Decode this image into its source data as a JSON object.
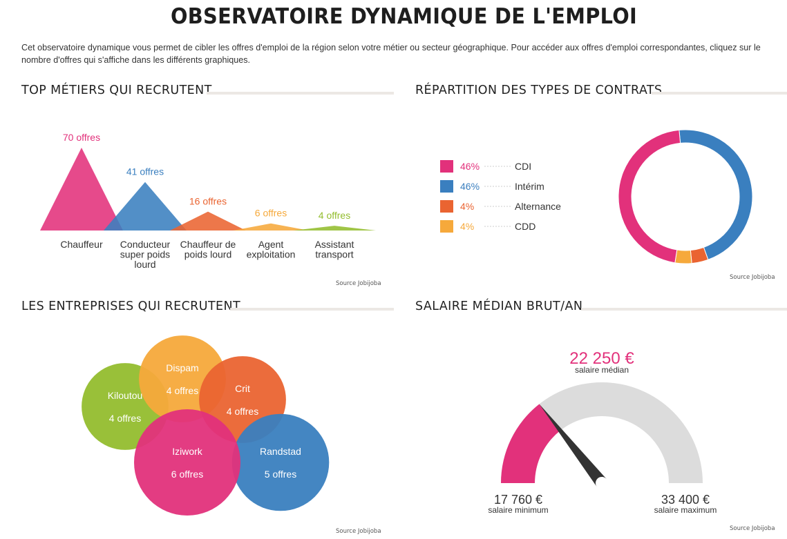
{
  "header": {
    "title": "OBSERVATOIRE DYNAMIQUE DE L'EMPLOI",
    "intro": "Cet observatoire dynamique vous permet de cibler les offres d'emploi de la région selon votre métier ou secteur géographique. Pour accéder aux offres d'emploi correspondantes, cliquez sur le nombre d'offres qui s'affiche dans les différents graphiques."
  },
  "sections": {
    "metiers": "TOP MÉTIERS QUI RECRUTENT",
    "contrats": "RÉPARTITION DES TYPES DE CONTRATS",
    "entreprises": "LES ENTREPRISES QUI RECRUTENT",
    "salaire": "SALAIRE MÉDIAN BRUT/AN"
  },
  "source": "Source Jobijoba",
  "colors": {
    "pink": "#e2317b",
    "blue": "#3a7fbf",
    "orange": "#ea6431",
    "yellow": "#f6a93b",
    "green": "#93bd2e",
    "gray": "#dcdcdc",
    "needle": "#333333"
  },
  "chart_data": [
    {
      "type": "bar",
      "categories": [
        [
          "Chauffeur"
        ],
        [
          "Conducteur",
          "super poids",
          "lourd"
        ],
        [
          "Chauffeur de",
          "poids lourd"
        ],
        [
          "Agent",
          "exploitation"
        ],
        [
          "Assistant",
          "transport"
        ]
      ],
      "values": [
        70,
        41,
        16,
        6,
        4
      ],
      "data_labels": [
        "70 offres",
        "41 offres",
        "16 offres",
        "6 offres",
        "4 offres"
      ],
      "colors": [
        "#e2317b",
        "#3a7fbf",
        "#ea6431",
        "#f6a93b",
        "#93bd2e"
      ]
    },
    {
      "type": "pie",
      "labels": [
        "CDI",
        "Intérim",
        "Alternance",
        "CDD"
      ],
      "values": [
        46,
        46,
        4,
        4
      ],
      "data_labels": [
        "46%",
        "46%",
        "4%",
        "4%"
      ],
      "colors": [
        "#e2317b",
        "#3a7fbf",
        "#ea6431",
        "#f6a93b"
      ]
    },
    {
      "type": "bubble",
      "labels": [
        "Kiloutou",
        "Dispam",
        "Crit",
        "Iziwork",
        "Randstad"
      ],
      "values": [
        4,
        4,
        4,
        6,
        5
      ],
      "data_labels": [
        "4 offres",
        "4 offres",
        "4 offres",
        "6 offres",
        "5 offres"
      ],
      "colors": [
        "#93bd2e",
        "#f6a93b",
        "#ea6431",
        "#e2317b",
        "#3a7fbf"
      ]
    },
    {
      "type": "gauge",
      "min": 17760,
      "max": 33400,
      "value": 22250,
      "min_label": "17 760 €",
      "max_label": "33 400 €",
      "value_label": "22 250 €",
      "min_caption": "salaire minimum",
      "max_caption": "salaire maximum",
      "value_caption": "salaire médian"
    }
  ]
}
